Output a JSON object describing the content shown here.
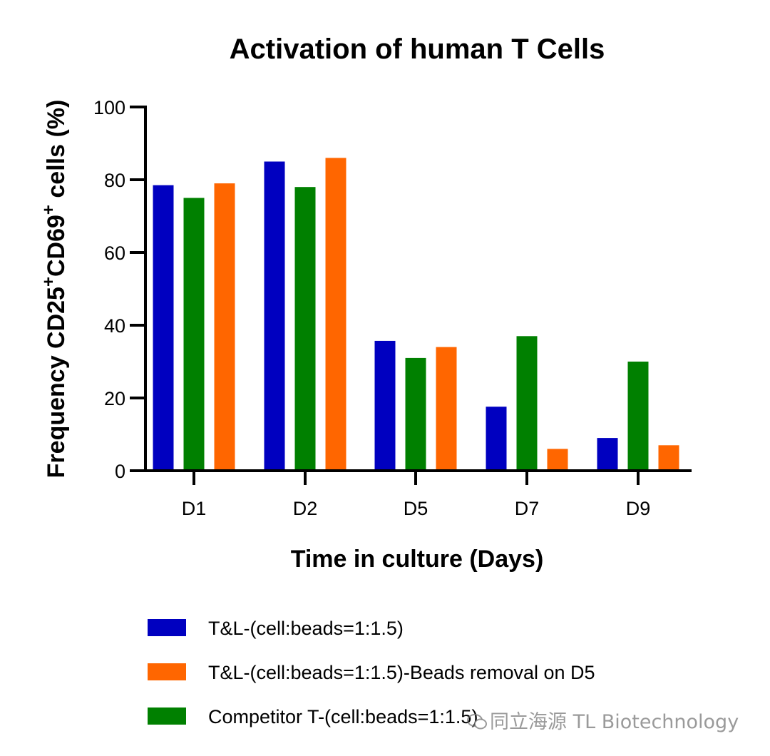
{
  "colors": {
    "blue": "#0000C0",
    "orange": "#FF6600",
    "green": "#008000",
    "axis": "#000000"
  },
  "watermark": {
    "text": "同立海源 TL Biotechnology",
    "icon": "wechat-icon"
  },
  "chart_data": {
    "type": "bar",
    "title": "Activation of human T Cells",
    "xlabel": "Time in culture (Days)",
    "ylabel_parts": {
      "prefix": "Frequency CD25",
      "sup1": "+",
      "mid": "CD69",
      "sup2": "+",
      "suffix": " cells (%)"
    },
    "categories": [
      "D1",
      "D2",
      "D5",
      "D7",
      "D9"
    ],
    "ylim": [
      0,
      100
    ],
    "yticks": [
      0,
      20,
      40,
      60,
      80,
      100
    ],
    "series": [
      {
        "name": "T&L-(cell:beads=1:1.5)",
        "color": "#0000C0",
        "values": [
          78.5,
          85,
          35.7,
          17.6,
          9
        ]
      },
      {
        "name": "Competitor T-(cell:beads=1:1.5)",
        "color": "#008000",
        "values": [
          75,
          78,
          31,
          37,
          30
        ]
      },
      {
        "name": "T&L-(cell:beads=1:1.5)-Beads removal on D5",
        "color": "#FF6600",
        "values": [
          79,
          86,
          34,
          6,
          7
        ]
      }
    ],
    "legend": [
      {
        "label": "T&L-(cell:beads=1:1.5)",
        "color": "#0000C0"
      },
      {
        "label": "T&L-(cell:beads=1:1.5)-Beads removal on D5",
        "color": "#FF6600"
      },
      {
        "label": "Competitor T-(cell:beads=1:1.5)",
        "color": "#008000"
      }
    ],
    "legend_position": "bottom"
  }
}
